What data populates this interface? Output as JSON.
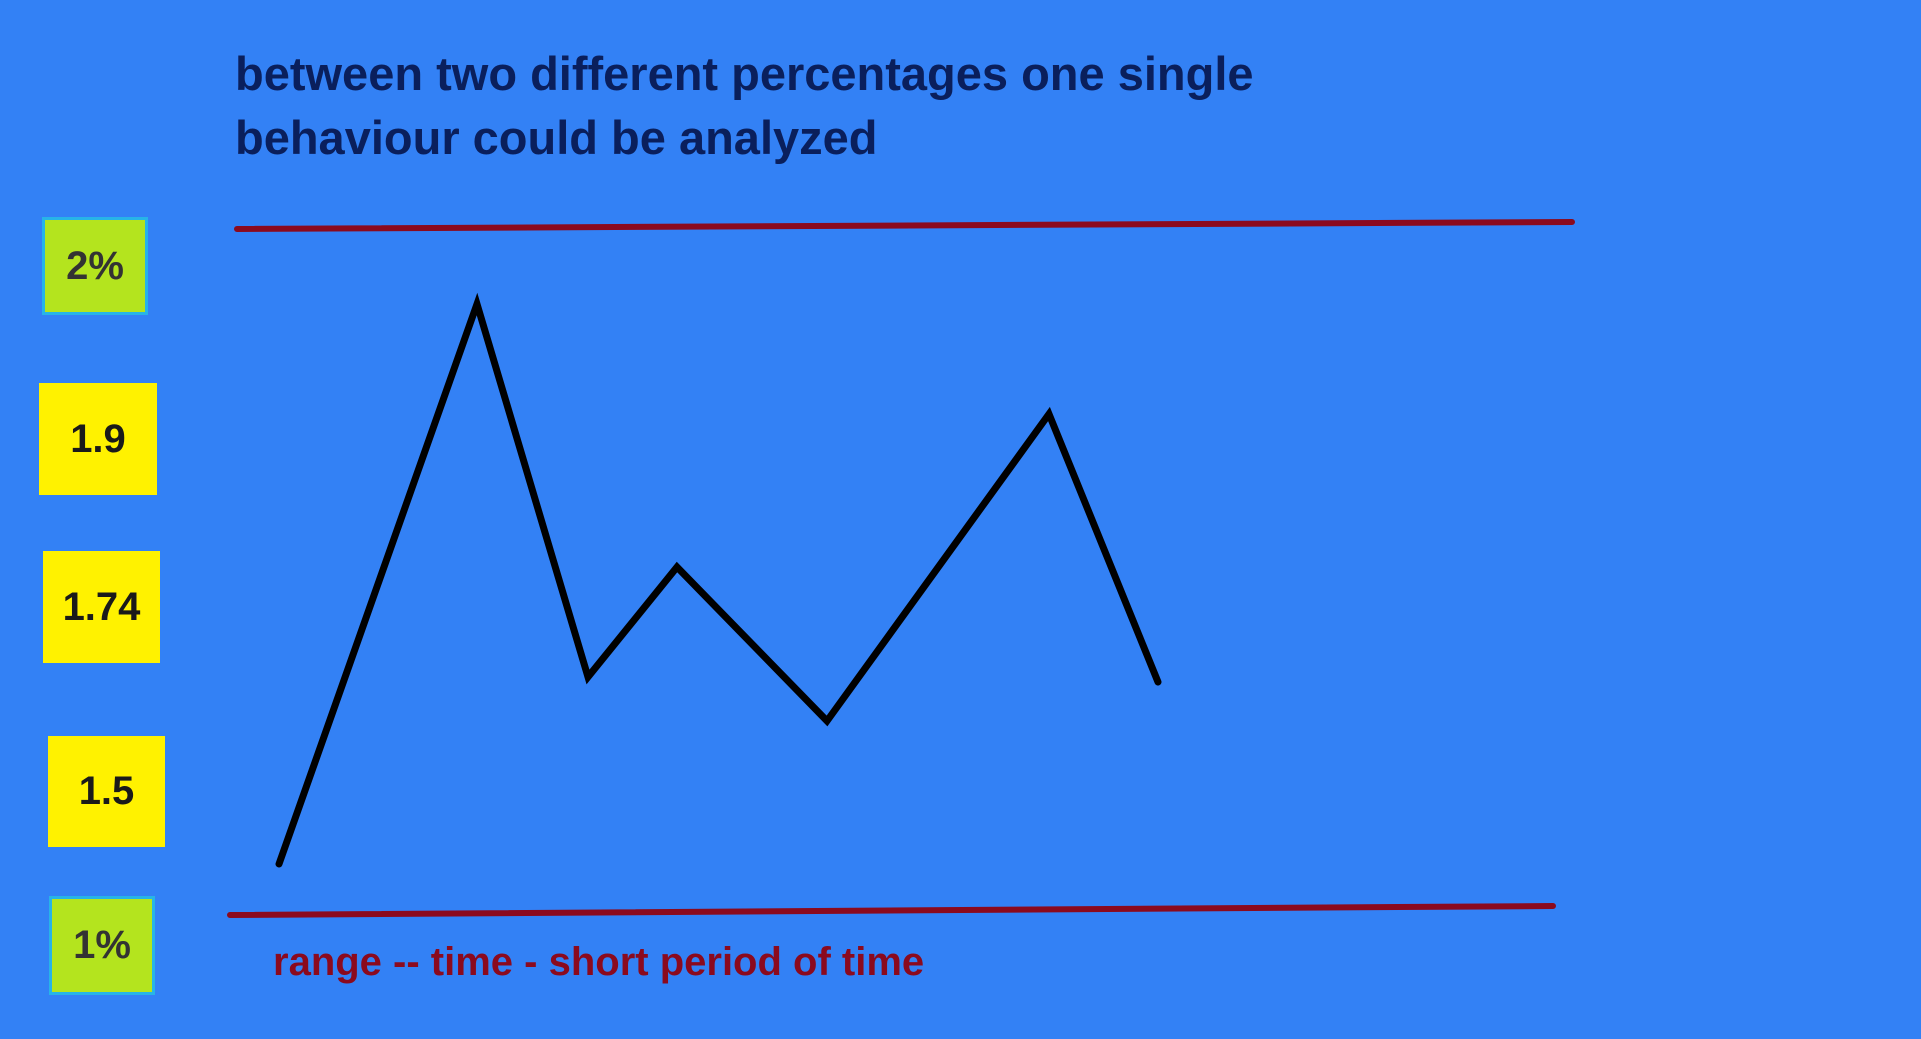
{
  "title_lines": [
    "between two different percentages one single",
    "behaviour could be analyzed"
  ],
  "labels": {
    "top_percent": "2%",
    "value_1": "1.9",
    "value_2": "1.74",
    "value_3": "1.5",
    "bottom_percent": "1%"
  },
  "footer": "range -- time - short period of time",
  "colors": {
    "background": "#3381f5",
    "title": "#0a1f5c",
    "range_line": "#8b0a1e",
    "path_line": "#000000",
    "percent_box": "#b4e41e",
    "value_box": "#fff200"
  }
}
